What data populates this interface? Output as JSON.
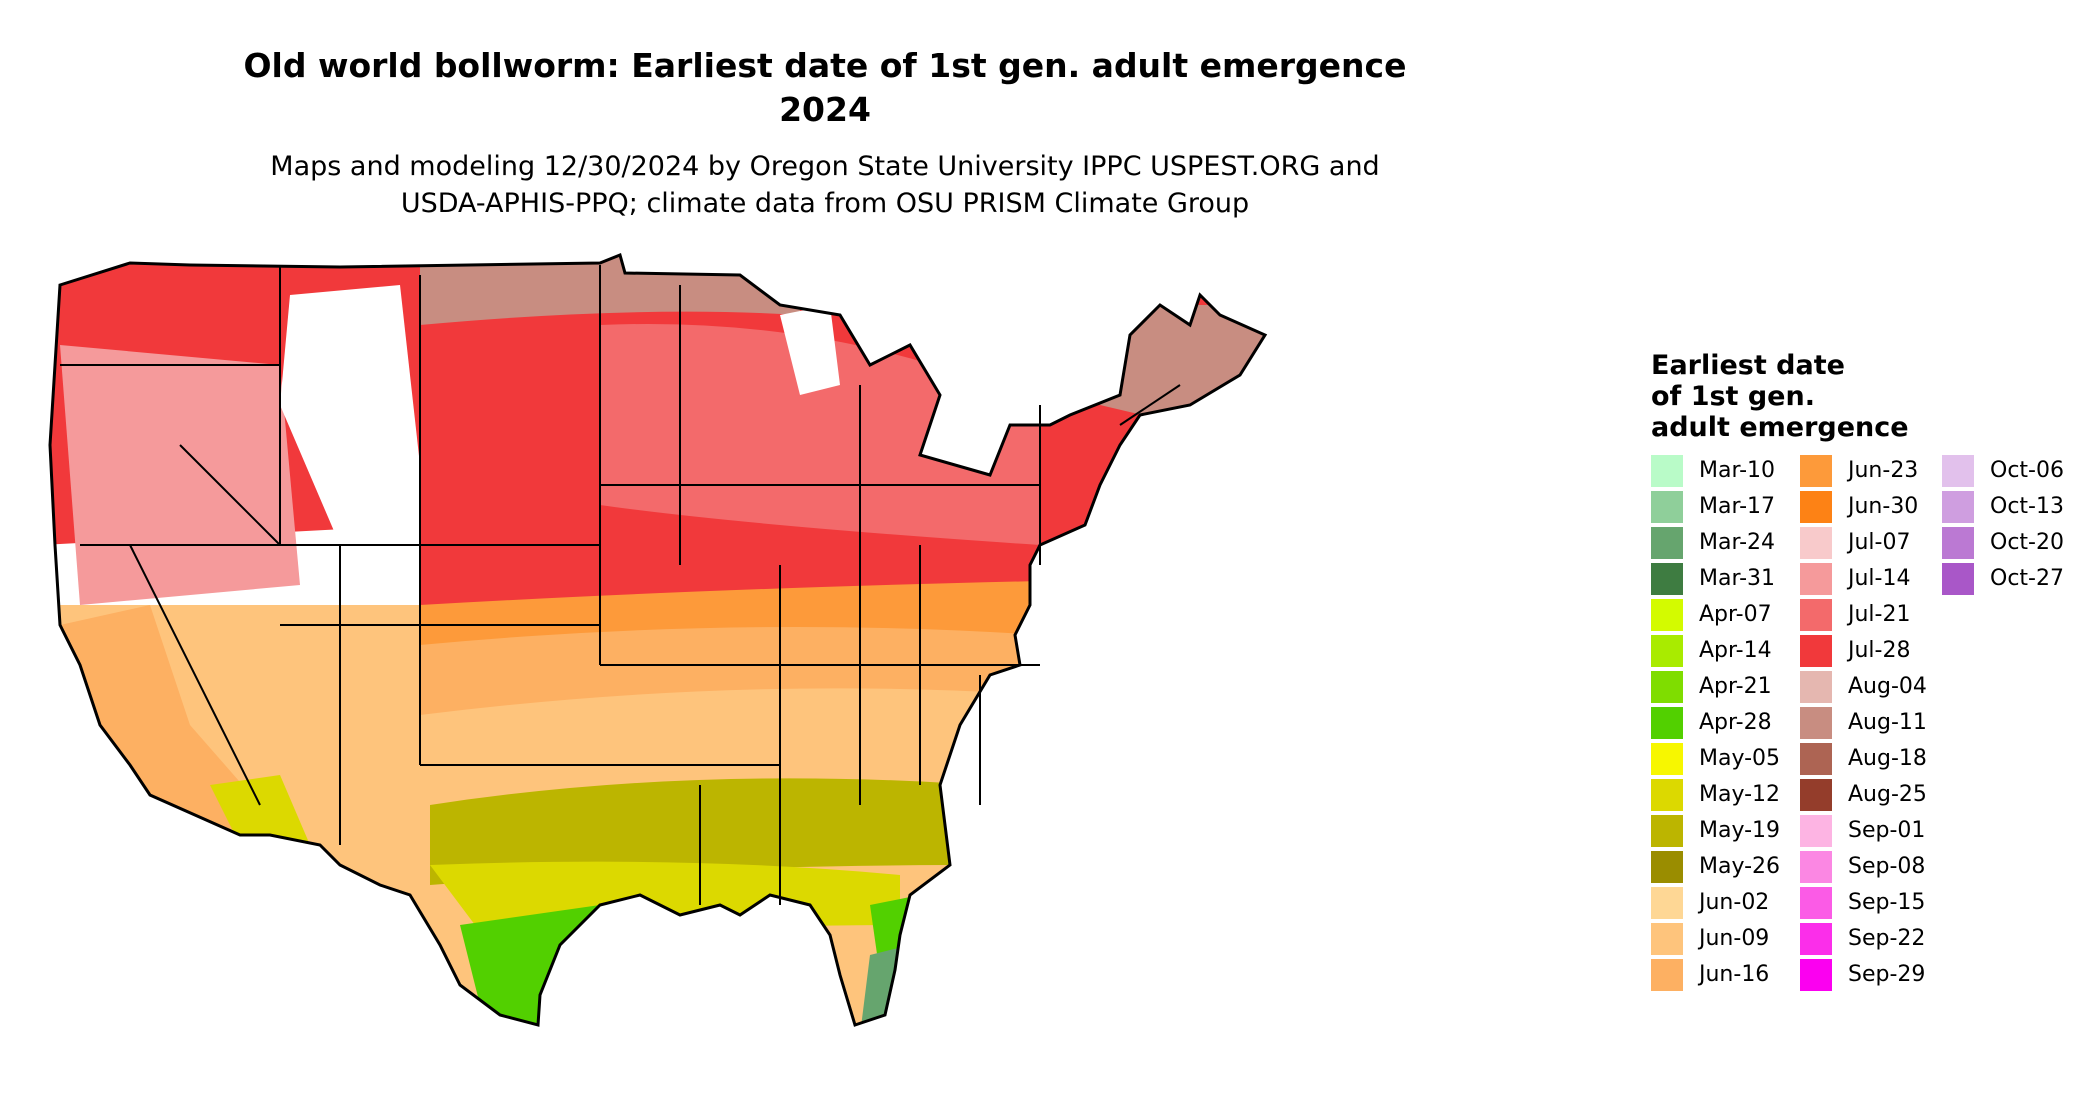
{
  "title_line1": "Old world bollworm: Earliest date of 1st gen. adult emergence",
  "title_line2": "2024",
  "subtitle_line1": "Maps and modeling 12/30/2024 by Oregon State University IPPC USPEST.ORG and",
  "subtitle_line2": "USDA-APHIS-PPQ; climate data from OSU PRISM Climate Group",
  "legend": {
    "title_lines": [
      "Earliest date",
      "of 1st gen.",
      "adult emergence"
    ],
    "columns": [
      [
        {
          "label": "Mar-10",
          "color": "#b9fbc8"
        },
        {
          "label": "Mar-17",
          "color": "#8fcf9a"
        },
        {
          "label": "Mar-24",
          "color": "#66a56e"
        },
        {
          "label": "Mar-31",
          "color": "#3e7c41"
        },
        {
          "label": "Apr-07",
          "color": "#d3fb00"
        },
        {
          "label": "Apr-14",
          "color": "#a9eb00"
        },
        {
          "label": "Apr-21",
          "color": "#7fdd00"
        },
        {
          "label": "Apr-28",
          "color": "#52d000"
        },
        {
          "label": "May-05",
          "color": "#f7f700"
        },
        {
          "label": "May-12",
          "color": "#dcd900"
        },
        {
          "label": "May-19",
          "color": "#bcb500"
        },
        {
          "label": "May-26",
          "color": "#9a8d00"
        },
        {
          "label": "Jun-02",
          "color": "#fed795"
        },
        {
          "label": "Jun-09",
          "color": "#fec47c"
        },
        {
          "label": "Jun-16",
          "color": "#fdb062"
        }
      ],
      [
        {
          "label": "Jun-23",
          "color": "#fd9a3a"
        },
        {
          "label": "Jun-30",
          "color": "#fd8215"
        },
        {
          "label": "Jul-07",
          "color": "#f8cacb"
        },
        {
          "label": "Jul-14",
          "color": "#f59a9b"
        },
        {
          "label": "Jul-21",
          "color": "#f36a6b"
        },
        {
          "label": "Jul-28",
          "color": "#f1393b"
        },
        {
          "label": "Aug-04",
          "color": "#e5b7b0"
        },
        {
          "label": "Aug-11",
          "color": "#c88d81"
        },
        {
          "label": "Aug-18",
          "color": "#ad6453"
        },
        {
          "label": "Aug-25",
          "color": "#943d2b"
        },
        {
          "label": "Sep-01",
          "color": "#fdb4e3"
        },
        {
          "label": "Sep-08",
          "color": "#fb87e3"
        },
        {
          "label": "Sep-15",
          "color": "#fb5be6"
        },
        {
          "label": "Sep-22",
          "color": "#fb2eea"
        },
        {
          "label": "Sep-29",
          "color": "#fb00f0"
        }
      ],
      [
        {
          "label": "Oct-06",
          "color": "#e2c1ec"
        },
        {
          "label": "Oct-13",
          "color": "#cf9ee0"
        },
        {
          "label": "Oct-20",
          "color": "#bb79d3"
        },
        {
          "label": "Oct-27",
          "color": "#a957c8"
        }
      ]
    ]
  },
  "map_colors": {
    "outline": "#000000",
    "no_data": "#ffffff",
    "north_reds": "#f1393b",
    "plains_orange": "#fd9a3a",
    "south_tan": "#fec47c",
    "gulf_olive": "#bcb500",
    "texas_green": "#52d000",
    "florida_teal": "#66a56e"
  }
}
